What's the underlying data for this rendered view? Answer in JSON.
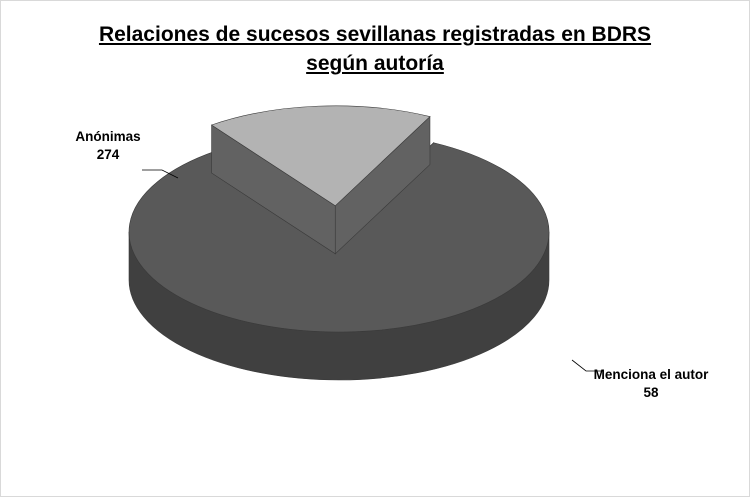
{
  "chart_data": {
    "type": "pie",
    "style": "3d-exploded",
    "title": "Relaciones de sucesos sevillanas registradas en BDRS",
    "subtitle": "según autoría",
    "slices": [
      {
        "label": "Anónimas",
        "value": 274,
        "color": "#595959"
      },
      {
        "label": "Menciona el autor",
        "value": 58,
        "color": "#b3b3b3"
      }
    ],
    "legend": "none"
  }
}
